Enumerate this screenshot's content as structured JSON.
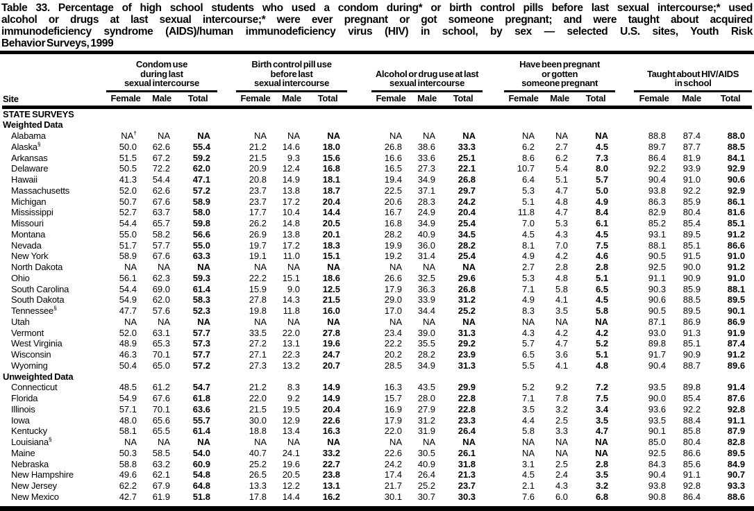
{
  "document": {
    "title_lines": [
      "Table 33. Percentage of high school students who used a condom during* or birth control pills before last sexual intercourse;* used",
      "alcohol or drugs at last sexual intercourse;* were ever pregnant or got someone pregnant; and were taught about acquired",
      "immunodeficiency syndrome (AIDS)/human immunodeficiency virus (HIV) in school, by sex — selected U.S. sites, Youth Risk",
      "Behavior Surveys, 1999"
    ]
  },
  "table": {
    "site_column_label": "Site",
    "column_groups": [
      {
        "label": "Condom use\nduring last\nsexual intercourse"
      },
      {
        "label": "Birth control pill use\nbefore last\nsexual intercourse"
      },
      {
        "label": "Alcohol or drug use at last\nsexual intercourse"
      },
      {
        "label": "Have been pregnant\nor gotten\nsomeone pregnant"
      },
      {
        "label": "Taught about HIV/AIDS\nin school"
      }
    ],
    "sub_columns": [
      "Female",
      "Male",
      "Total"
    ],
    "sections": [
      {
        "heading": "STATE SURVEYS",
        "rows": []
      },
      {
        "heading": "Weighted Data",
        "rows": [
          {
            "site": "Alabama",
            "values": [
              "NA†",
              "NA",
              "NA",
              "NA",
              "NA",
              "NA",
              "NA",
              "NA",
              "NA",
              "NA",
              "NA",
              "NA",
              "88.8",
              "87.4",
              "88.0"
            ]
          },
          {
            "site": "Alaska§",
            "values": [
              "50.0",
              "62.6",
              "55.4",
              "21.2",
              "14.6",
              "18.0",
              "26.8",
              "38.6",
              "33.3",
              "6.2",
              "2.7",
              "4.5",
              "89.7",
              "87.7",
              "88.5"
            ]
          },
          {
            "site": "Arkansas",
            "values": [
              "51.5",
              "67.2",
              "59.2",
              "21.5",
              "9.3",
              "15.6",
              "16.6",
              "33.6",
              "25.1",
              "8.6",
              "6.2",
              "7.3",
              "86.4",
              "81.9",
              "84.1"
            ]
          },
          {
            "site": "Delaware",
            "values": [
              "50.5",
              "72.2",
              "62.0",
              "20.9",
              "12.4",
              "16.8",
              "16.5",
              "27.3",
              "22.1",
              "10.7",
              "5.4",
              "8.0",
              "92.2",
              "93.9",
              "92.9"
            ]
          },
          {
            "site": "Hawaii",
            "values": [
              "41.3",
              "54.4",
              "47.1",
              "20.8",
              "14.9",
              "18.1",
              "19.4",
              "34.9",
              "26.8",
              "6.4",
              "5.1",
              "5.7",
              "90.4",
              "91.0",
              "90.6"
            ]
          },
          {
            "site": "Massachusetts",
            "values": [
              "52.0",
              "62.6",
              "57.2",
              "23.7",
              "13.8",
              "18.7",
              "22.5",
              "37.1",
              "29.7",
              "5.3",
              "4.7",
              "5.0",
              "93.8",
              "92.2",
              "92.9"
            ]
          },
          {
            "site": "Michigan",
            "values": [
              "50.7",
              "67.6",
              "58.9",
              "23.7",
              "17.2",
              "20.4",
              "20.6",
              "28.3",
              "24.2",
              "5.1",
              "4.8",
              "4.9",
              "86.3",
              "85.9",
              "86.1"
            ]
          },
          {
            "site": "Mississippi",
            "values": [
              "52.7",
              "63.7",
              "58.0",
              "17.7",
              "10.4",
              "14.4",
              "16.7",
              "24.9",
              "20.4",
              "11.8",
              "4.7",
              "8.4",
              "82.9",
              "80.4",
              "81.6"
            ]
          },
          {
            "site": "Missouri",
            "values": [
              "54.4",
              "65.7",
              "59.8",
              "26.2",
              "14.8",
              "20.5",
              "16.8",
              "34.9",
              "25.4",
              "7.0",
              "5.3",
              "6.1",
              "85.2",
              "85.4",
              "85.1"
            ]
          },
          {
            "site": "Montana",
            "values": [
              "55.0",
              "58.2",
              "56.6",
              "26.9",
              "13.8",
              "20.1",
              "28.2",
              "40.9",
              "34.5",
              "4.5",
              "4.3",
              "4.5",
              "93.1",
              "89.5",
              "91.2"
            ]
          },
          {
            "site": "Nevada",
            "values": [
              "51.7",
              "57.7",
              "55.0",
              "19.7",
              "17.2",
              "18.3",
              "19.9",
              "36.0",
              "28.2",
              "8.1",
              "7.0",
              "7.5",
              "88.1",
              "85.1",
              "86.6"
            ]
          },
          {
            "site": "New York",
            "values": [
              "58.9",
              "67.6",
              "63.3",
              "19.1",
              "11.0",
              "15.1",
              "19.2",
              "31.4",
              "25.4",
              "4.9",
              "4.2",
              "4.6",
              "90.5",
              "91.5",
              "91.0"
            ]
          },
          {
            "site": "North Dakota",
            "values": [
              "NA",
              "NA",
              "NA",
              "NA",
              "NA",
              "NA",
              "NA",
              "NA",
              "NA",
              "2.7",
              "2.8",
              "2.8",
              "92.5",
              "90.0",
              "91.2"
            ]
          },
          {
            "site": "Ohio",
            "values": [
              "56.1",
              "62.3",
              "59.3",
              "22.2",
              "15.1",
              "18.6",
              "26.6",
              "32.5",
              "29.6",
              "5.3",
              "4.8",
              "5.1",
              "91.1",
              "90.9",
              "91.0"
            ]
          },
          {
            "site": "South Carolina",
            "values": [
              "54.4",
              "69.0",
              "61.4",
              "15.9",
              "9.0",
              "12.5",
              "17.9",
              "36.3",
              "26.8",
              "7.1",
              "5.8",
              "6.5",
              "90.3",
              "85.9",
              "88.1"
            ]
          },
          {
            "site": "South Dakota",
            "values": [
              "54.9",
              "62.0",
              "58.3",
              "27.8",
              "14.3",
              "21.5",
              "29.0",
              "33.9",
              "31.2",
              "4.9",
              "4.1",
              "4.5",
              "90.6",
              "88.5",
              "89.5"
            ]
          },
          {
            "site": "Tennessee§",
            "values": [
              "47.7",
              "57.6",
              "52.3",
              "19.8",
              "11.8",
              "16.0",
              "17.0",
              "34.4",
              "25.2",
              "8.3",
              "3.5",
              "5.8",
              "90.5",
              "89.5",
              "90.1"
            ]
          },
          {
            "site": "Utah",
            "values": [
              "NA",
              "NA",
              "NA",
              "NA",
              "NA",
              "NA",
              "NA",
              "NA",
              "NA",
              "NA",
              "NA",
              "NA",
              "87.1",
              "86.9",
              "86.9"
            ]
          },
          {
            "site": "Vermont",
            "values": [
              "52.0",
              "63.1",
              "57.7",
              "33.5",
              "22.0",
              "27.8",
              "23.4",
              "39.0",
              "31.3",
              "4.3",
              "4.2",
              "4.2",
              "93.0",
              "91.3",
              "91.9"
            ]
          },
          {
            "site": "West Virginia",
            "values": [
              "48.9",
              "65.3",
              "57.3",
              "27.2",
              "13.1",
              "19.6",
              "22.2",
              "35.5",
              "29.2",
              "5.7",
              "4.7",
              "5.2",
              "89.8",
              "85.1",
              "87.4"
            ]
          },
          {
            "site": "Wisconsin",
            "values": [
              "46.3",
              "70.1",
              "57.7",
              "27.1",
              "22.3",
              "24.7",
              "20.2",
              "28.2",
              "23.9",
              "6.5",
              "3.6",
              "5.1",
              "91.7",
              "90.9",
              "91.2"
            ]
          },
          {
            "site": "Wyoming",
            "values": [
              "50.4",
              "65.0",
              "57.2",
              "27.3",
              "13.2",
              "20.7",
              "28.5",
              "34.9",
              "31.3",
              "5.5",
              "4.1",
              "4.8",
              "90.4",
              "88.7",
              "89.6"
            ]
          }
        ]
      },
      {
        "heading": "Unweighted Data",
        "rows": [
          {
            "site": "Connecticut",
            "values": [
              "48.5",
              "61.2",
              "54.7",
              "21.2",
              "8.3",
              "14.9",
              "16.3",
              "43.5",
              "29.9",
              "5.2",
              "9.2",
              "7.2",
              "93.5",
              "89.8",
              "91.4"
            ]
          },
          {
            "site": "Florida",
            "values": [
              "54.9",
              "67.6",
              "61.8",
              "22.0",
              "9.2",
              "14.9",
              "15.7",
              "28.0",
              "22.8",
              "7.1",
              "7.8",
              "7.5",
              "90.0",
              "85.4",
              "87.6"
            ]
          },
          {
            "site": "Illinois",
            "values": [
              "57.1",
              "70.1",
              "63.6",
              "21.5",
              "19.5",
              "20.4",
              "16.9",
              "27.9",
              "22.8",
              "3.5",
              "3.2",
              "3.4",
              "93.6",
              "92.2",
              "92.8"
            ]
          },
          {
            "site": "Iowa",
            "values": [
              "48.0",
              "65.6",
              "55.7",
              "30.0",
              "12.9",
              "22.6",
              "17.9",
              "31.2",
              "23.3",
              "4.4",
              "2.5",
              "3.5",
              "93.5",
              "88.4",
              "91.1"
            ]
          },
          {
            "site": "Kentucky",
            "values": [
              "58.1",
              "65.5",
              "61.4",
              "18.8",
              "13.4",
              "16.3",
              "22.0",
              "31.9",
              "26.4",
              "5.8",
              "3.3",
              "4.7",
              "90.1",
              "85.8",
              "87.9"
            ]
          },
          {
            "site": "Louisiana§",
            "values": [
              "NA",
              "NA",
              "NA",
              "NA",
              "NA",
              "NA",
              "NA",
              "NA",
              "NA",
              "NA",
              "NA",
              "NA",
              "85.0",
              "80.4",
              "82.8"
            ]
          },
          {
            "site": "Maine",
            "values": [
              "50.3",
              "58.5",
              "54.0",
              "40.7",
              "24.1",
              "33.2",
              "22.6",
              "30.5",
              "26.1",
              "NA",
              "NA",
              "NA",
              "92.5",
              "86.6",
              "89.5"
            ]
          },
          {
            "site": "Nebraska",
            "values": [
              "58.8",
              "63.2",
              "60.9",
              "25.2",
              "19.6",
              "22.7",
              "24.2",
              "40.9",
              "31.8",
              "3.1",
              "2.5",
              "2.8",
              "84.3",
              "85.6",
              "84.9"
            ]
          },
          {
            "site": "New Hampshire",
            "values": [
              "49.6",
              "62.1",
              "54.8",
              "26.5",
              "20.5",
              "23.8",
              "17.4",
              "26.4",
              "21.3",
              "4.5",
              "2.4",
              "3.5",
              "90.4",
              "91.1",
              "90.7"
            ]
          },
          {
            "site": "New Jersey",
            "values": [
              "62.2",
              "67.9",
              "64.8",
              "13.3",
              "12.2",
              "13.1",
              "21.7",
              "25.2",
              "23.7",
              "2.1",
              "4.3",
              "3.2",
              "93.8",
              "92.8",
              "93.3"
            ]
          },
          {
            "site": "New Mexico",
            "values": [
              "42.7",
              "61.9",
              "51.8",
              "17.8",
              "14.4",
              "16.2",
              "30.1",
              "30.7",
              "30.3",
              "7.6",
              "6.0",
              "6.8",
              "90.8",
              "86.4",
              "88.6"
            ]
          }
        ]
      }
    ]
  }
}
